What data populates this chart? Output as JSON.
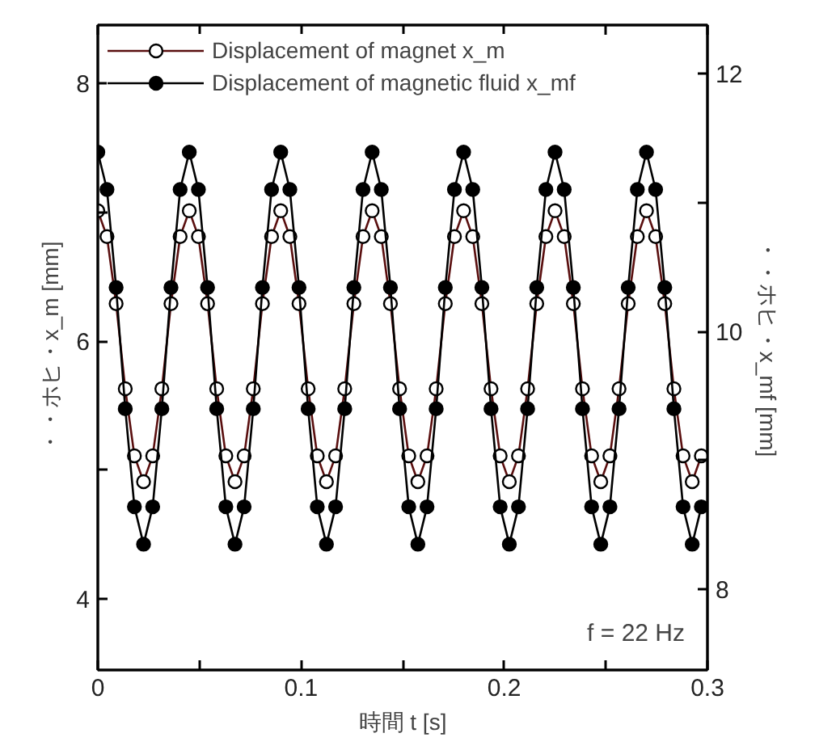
{
  "chart_data": {
    "type": "line",
    "xlabel": "時間 t [s]",
    "ylabel": "・・ホヒ・x_m [mm]",
    "y2label": "・・ホヒ・x_mf [mm]",
    "annotations": [
      "f = 22 Hz"
    ],
    "xlim": [
      0,
      0.3
    ],
    "xticks": [
      0,
      {
        "value": 0.05,
        "label": null
      },
      0.1,
      {
        "value": 0.15,
        "label": null
      },
      0.2,
      {
        "value": 0.25,
        "label": null
      },
      0.3
    ],
    "ylim": [
      3.45,
      8.45
    ],
    "yticks": [
      4,
      {
        "value": 5,
        "label": null
      },
      6,
      {
        "value": 7,
        "label": null
      },
      8
    ],
    "y2lim": [
      7.375,
      12.375
    ],
    "y2ticks": [
      8,
      {
        "value": 9,
        "label": null
      },
      10,
      {
        "value": 11,
        "label": null
      },
      12
    ],
    "legend": "top left",
    "grid": false,
    "marker": "circle",
    "line_style": "solid",
    "x": [
      0,
      0.0045,
      0.009,
      0.0135,
      0.018,
      0.0225,
      0.027,
      0.0315,
      0.036,
      0.0405,
      0.045,
      0.0495,
      0.054,
      0.0585,
      0.063,
      0.0675,
      0.072,
      0.0765,
      0.081,
      0.0855,
      0.09,
      0.0945,
      0.099,
      0.1035,
      0.108,
      0.1125,
      0.117,
      0.1215,
      0.126,
      0.1305,
      0.135,
      0.1395,
      0.144,
      0.1485,
      0.153,
      0.1575,
      0.162,
      0.1665,
      0.171,
      0.1755,
      0.18,
      0.1845,
      0.189,
      0.1935,
      0.198,
      0.2025,
      0.207,
      0.2115,
      0.216,
      0.2205,
      0.225,
      0.2295,
      0.234,
      0.2385,
      0.243,
      0.2475,
      0.252,
      0.2565,
      0.261,
      0.2655,
      0.27,
      0.2745,
      0.279,
      0.2835,
      0.288,
      0.2925,
      0.297
    ],
    "series": [
      {
        "name": "Displacement of magnet x_m",
        "color": "#5a0f0f",
        "values": [
          7.01,
          6.81,
          6.29,
          5.63,
          5.11,
          4.91,
          5.11,
          5.63,
          6.29,
          6.81,
          7.01,
          6.81,
          6.29,
          5.63,
          5.11,
          4.91,
          5.11,
          5.63,
          6.29,
          6.81,
          7.01,
          6.81,
          6.29,
          5.63,
          5.11,
          4.91,
          5.11,
          5.63,
          6.29,
          6.81,
          7.01,
          6.81,
          6.29,
          5.63,
          5.11,
          4.91,
          5.11,
          5.63,
          6.29,
          6.81,
          7.01,
          6.81,
          6.29,
          5.63,
          5.11,
          4.91,
          5.11,
          5.63,
          6.29,
          6.81,
          7.01,
          6.81,
          6.29,
          5.63,
          5.11,
          4.91,
          5.11,
          5.63,
          6.29,
          6.81,
          7.01,
          6.81,
          6.29,
          5.63,
          5.11,
          4.91,
          5.11
        ]
      },
      {
        "name": "Displacement of magnetic fluid x_mf",
        "color": "#000000",
        "axis": "y2",
        "values": [
          11.39,
          11.1,
          10.34,
          9.4,
          8.64,
          8.35,
          8.64,
          9.4,
          10.34,
          11.1,
          11.39,
          11.1,
          10.34,
          9.4,
          8.64,
          8.35,
          8.64,
          9.4,
          10.34,
          11.1,
          11.39,
          11.1,
          10.34,
          9.4,
          8.64,
          8.35,
          8.64,
          9.4,
          10.34,
          11.1,
          11.39,
          11.1,
          10.34,
          9.4,
          8.64,
          8.35,
          8.64,
          9.4,
          10.34,
          11.1,
          11.39,
          11.1,
          10.34,
          9.4,
          8.64,
          8.35,
          8.64,
          9.4,
          10.34,
          11.1,
          11.39,
          11.1,
          10.34,
          9.4,
          8.64,
          8.35,
          8.64,
          9.4,
          10.34,
          11.1,
          11.39,
          11.1,
          10.34,
          9.4,
          8.64,
          8.35,
          8.64
        ]
      }
    ]
  }
}
